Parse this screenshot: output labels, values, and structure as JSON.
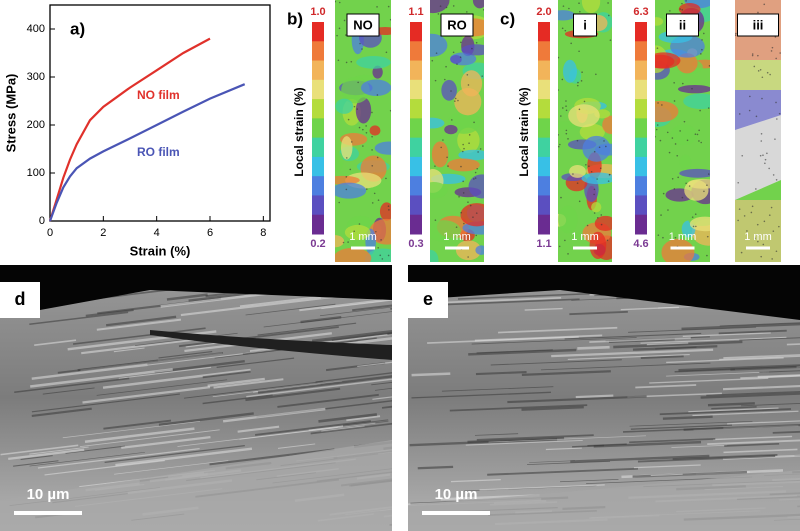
{
  "chart_data": {
    "type": "line",
    "panel_label": "a)",
    "x_label": "Strain (%)",
    "y_label": "Stress (MPa)",
    "xlim": [
      0,
      8.25
    ],
    "ylim": [
      0,
      450
    ],
    "xticks": [
      0,
      2,
      4,
      6,
      8
    ],
    "yticks": [
      0,
      100,
      200,
      300,
      400
    ],
    "series": [
      {
        "name": "NO film",
        "color": "#e0312b",
        "x": [
          0,
          0.25,
          0.5,
          0.75,
          1,
          1.5,
          2,
          2.5,
          3,
          4,
          5,
          6
        ],
        "y": [
          0,
          45,
          90,
          128,
          160,
          210,
          238,
          258,
          278,
          314,
          350,
          380
        ]
      },
      {
        "name": "RO film",
        "color": "#4a55b5",
        "x": [
          0,
          0.25,
          0.5,
          0.75,
          1,
          1.5,
          2,
          3,
          4,
          5,
          6,
          7.3
        ],
        "y": [
          0,
          38,
          70,
          93,
          110,
          130,
          145,
          172,
          200,
          228,
          255,
          285
        ]
      }
    ]
  },
  "maps": {
    "label_b": "b)",
    "label_c": "c)",
    "colorbar_label": "Local strain (%)",
    "panels": [
      {
        "title": "NO",
        "max": "1.0",
        "min": "0.2",
        "scale": "1 mm"
      },
      {
        "title": "RO",
        "max": "1.1",
        "min": "0.3",
        "scale": "1 mm"
      },
      {
        "title": "i",
        "max": "2.0",
        "min": "1.1",
        "scale": "1 mm"
      },
      {
        "title": "ii",
        "max": "6.3",
        "min": "4.6",
        "scale": "1 mm"
      },
      {
        "title": "iii",
        "scale": "1 mm"
      }
    ]
  },
  "sem": [
    {
      "label": "d",
      "scale": "10 µm"
    },
    {
      "label": "e",
      "scale": "10 µm"
    }
  ]
}
